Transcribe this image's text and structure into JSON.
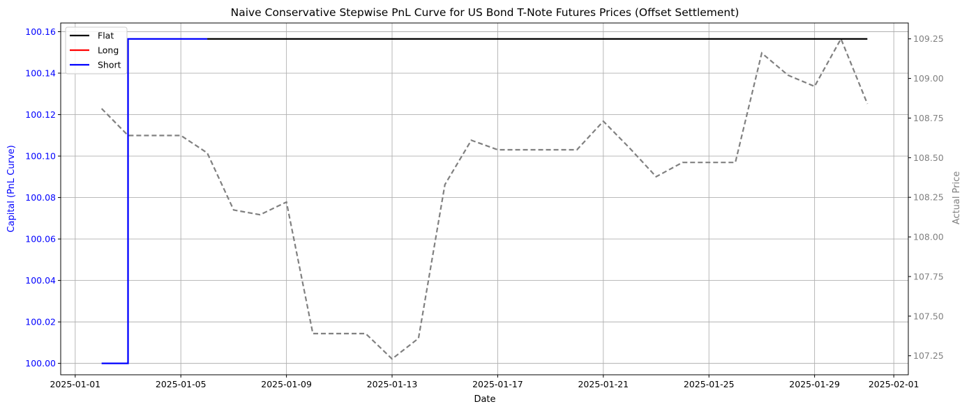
{
  "chart_data": {
    "type": "line",
    "title": "Naive Conservative Stepwise PnL Curve for US Bond T-Note Futures Prices (Offset Settlement)",
    "xlabel": "Date",
    "ylabel_left": "Capital (PnL Curve)",
    "ylabel_right": "Actual Price",
    "x_tick_labels": [
      "2025-01-01",
      "2025-01-05",
      "2025-01-09",
      "2025-01-13",
      "2025-01-17",
      "2025-01-21",
      "2025-01-25",
      "2025-01-29",
      "2025-02-01"
    ],
    "x_tick_days": [
      1,
      5,
      9,
      13,
      17,
      21,
      25,
      29,
      32
    ],
    "xlim_days": [
      0.45,
      32.55
    ],
    "ylim_left": [
      99.9945,
      100.1642
    ],
    "yticks_left": [
      "100.00",
      "100.02",
      "100.04",
      "100.06",
      "100.08",
      "100.10",
      "100.12",
      "100.14",
      "100.16"
    ],
    "ylim_right": [
      107.13,
      109.35
    ],
    "yticks_right": [
      "107.25",
      "107.50",
      "107.75",
      "108.00",
      "108.25",
      "108.50",
      "108.75",
      "109.00",
      "109.25"
    ],
    "grid": true,
    "legend_position": "top-left",
    "legend": [
      {
        "name": "Flat",
        "color": "#000000"
      },
      {
        "name": "Long",
        "color": "#ff0000"
      },
      {
        "name": "Short",
        "color": "#0000ff"
      }
    ],
    "pnl_segments": [
      {
        "position": "Short",
        "color": "#0000ff",
        "points": [
          [
            2,
            100.0
          ],
          [
            3,
            100.0
          ],
          [
            3,
            100.1565
          ],
          [
            6,
            100.1565
          ]
        ]
      },
      {
        "position": "Flat",
        "color": "#000000",
        "points": [
          [
            6,
            100.1565
          ],
          [
            31,
            100.1565
          ]
        ]
      }
    ],
    "price_series": {
      "name": "Actual Price",
      "color": "#808080",
      "style": "dashed",
      "days": [
        2,
        3,
        4,
        5,
        6,
        7,
        8,
        9,
        10,
        11,
        12,
        13,
        14,
        15,
        16,
        17,
        18,
        19,
        20,
        21,
        22,
        23,
        24,
        25,
        26,
        27,
        28,
        29,
        30,
        31
      ],
      "values": [
        108.81,
        108.64,
        108.64,
        108.64,
        108.53,
        108.17,
        108.14,
        108.22,
        107.39,
        107.39,
        107.39,
        107.23,
        107.36,
        108.33,
        108.61,
        108.55,
        108.55,
        108.55,
        108.55,
        108.73,
        108.56,
        108.38,
        108.47,
        108.47,
        108.47,
        109.16,
        109.02,
        108.95,
        109.25,
        108.84
      ]
    }
  }
}
